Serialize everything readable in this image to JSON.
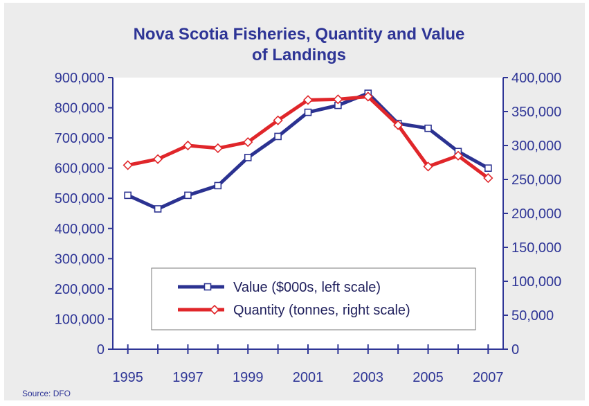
{
  "chart_data": {
    "type": "line",
    "title": "Nova Scotia Fisheries, Quantity and Value of Landings",
    "title_lines": [
      "Nova Scotia Fisheries, Quantity and Value",
      "of Landings"
    ],
    "source": "Source: DFO",
    "x": [
      1995,
      1996,
      1997,
      1998,
      1999,
      2000,
      2001,
      2002,
      2003,
      2004,
      2005,
      2006,
      2007
    ],
    "x_tick_labels": [
      "1995",
      "1997",
      "1999",
      "2001",
      "2003",
      "2005",
      "2007"
    ],
    "y_left": {
      "ylim": [
        0,
        900000
      ],
      "ticks": [
        "0",
        "100,000",
        "200,000",
        "300,000",
        "400,000",
        "500,000",
        "600,000",
        "700,000",
        "800,000",
        "900,000"
      ]
    },
    "y_right": {
      "ylim": [
        0,
        400000
      ],
      "ticks": [
        "0",
        "50,000",
        "100,000",
        "150,000",
        "200,000",
        "250,000",
        "300,000",
        "350,000",
        "400,000"
      ]
    },
    "series": [
      {
        "name": "Value ($000s, left scale)",
        "axis": "left",
        "color": "#2b3291",
        "marker": "square",
        "values": [
          510000,
          465000,
          510000,
          542000,
          635000,
          705000,
          785000,
          808000,
          848000,
          748000,
          732000,
          655000,
          600000
        ]
      },
      {
        "name": "Quantity (tonnes, right scale)",
        "axis": "right",
        "color": "#e0262a",
        "marker": "diamond",
        "values": [
          271000,
          280000,
          300000,
          296000,
          305000,
          337000,
          367000,
          368000,
          372000,
          330000,
          269000,
          285000,
          252000
        ]
      }
    ],
    "grid": false,
    "legend_position": "bottom-center"
  },
  "colors": {
    "axis": "#2e3596",
    "background": "#ececec",
    "legend_bg": "#ffffff"
  }
}
